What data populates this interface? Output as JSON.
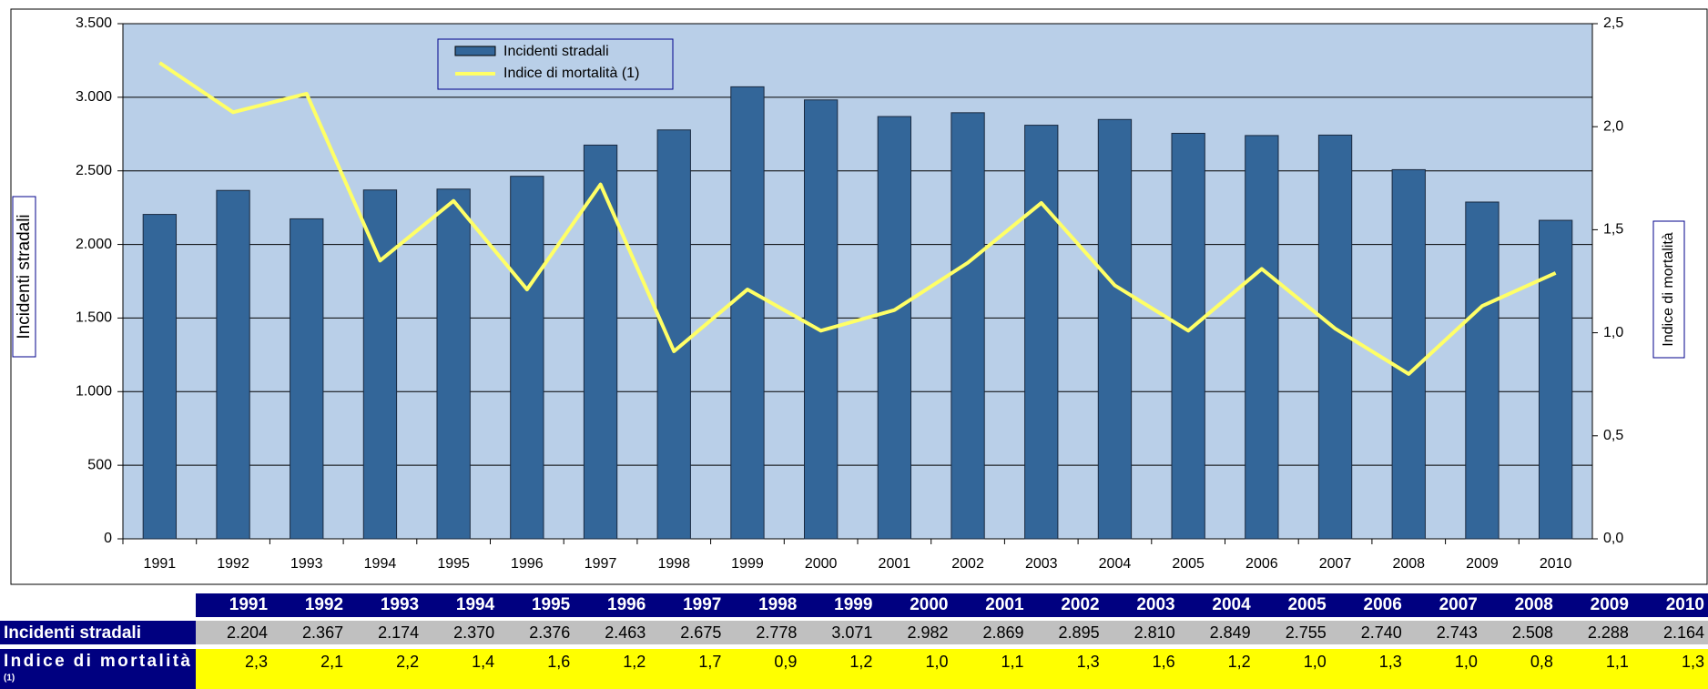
{
  "chart_data": {
    "type": "bar-line",
    "categories": [
      "1991",
      "1992",
      "1993",
      "1994",
      "1995",
      "1996",
      "1997",
      "1998",
      "1999",
      "2000",
      "2001",
      "2002",
      "2003",
      "2004",
      "2005",
      "2006",
      "2007",
      "2008",
      "2009",
      "2010"
    ],
    "y_label": "Incidenti stradali",
    "y2_label": "Indice di mortalità",
    "ylim": [
      0,
      3500
    ],
    "yticks": [
      0,
      500,
      {
        "value": 1000,
        "label": "1.000"
      },
      {
        "value": 1500,
        "label": "1.500"
      },
      {
        "value": 2000,
        "label": "2.000"
      },
      {
        "value": 2500,
        "label": "2.500"
      },
      {
        "value": 3000,
        "label": "3.000"
      },
      {
        "value": 3500,
        "label": "3.500"
      }
    ],
    "y2lim": [
      0,
      2.5
    ],
    "y2ticks": [
      {
        "value": 0,
        "label": "0,0"
      },
      {
        "value": 0.5,
        "label": "0,5"
      },
      {
        "value": 1,
        "label": "1,0"
      },
      {
        "value": 1.5,
        "label": "1,5"
      },
      {
        "value": 2,
        "label": "2,0"
      },
      {
        "value": 2.5,
        "label": "2,5"
      }
    ],
    "grid": true,
    "series": [
      {
        "name": "Incidenti stradali",
        "color": "#336699",
        "values": [
          2204,
          2367,
          2174,
          2370,
          2376,
          2463,
          2675,
          2778,
          3071,
          2982,
          2869,
          2895,
          2810,
          2849,
          2755,
          2740,
          2743,
          2508,
          2288,
          2164
        ],
        "value_labels": [
          "2.204",
          "2.367",
          "2.174",
          "2.370",
          "2.376",
          "2.463",
          "2.675",
          "2.778",
          "3.071",
          "2.982",
          "2.869",
          "2.895",
          "2.810",
          "2.849",
          "2.755",
          "2.740",
          "2.743",
          "2.508",
          "2.288",
          "2.164"
        ]
      },
      {
        "name": "Indice di mortalità (1)",
        "color": "#ffff66",
        "axis": "y2",
        "values": [
          2.31,
          2.07,
          2.16,
          1.35,
          1.64,
          1.21,
          1.72,
          0.91,
          1.21,
          1.01,
          1.11,
          1.34,
          1.63,
          1.23,
          1.01,
          1.31,
          1.02,
          0.8,
          1.13,
          1.29
        ],
        "value_labels": [
          "2,3",
          "2,1",
          "2,2",
          "1,4",
          "1,6",
          "1,2",
          "1,7",
          "0,9",
          "1,2",
          "1,0",
          "1,1",
          "1,3",
          "1,6",
          "1,2",
          "1,0",
          "1,3",
          "1,0",
          "0,8",
          "1,1",
          "1,3"
        ]
      }
    ],
    "table": {
      "row_labels": [
        "Incidenti stradali",
        "Indice di mortalità"
      ],
      "note": "(1)"
    }
  }
}
